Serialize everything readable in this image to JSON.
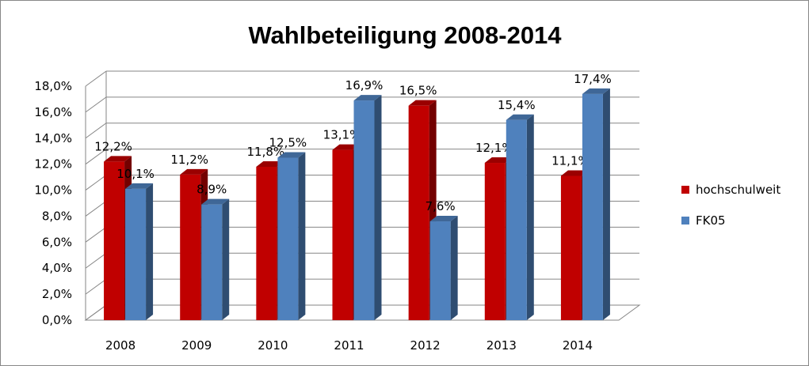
{
  "chart_data": {
    "type": "bar",
    "title": "Wahlbeteiligung 2008-2014",
    "xlabel": "",
    "ylabel": "",
    "categories": [
      "2008",
      "2009",
      "2010",
      "2011",
      "2012",
      "2013",
      "2014"
    ],
    "series": [
      {
        "name": "hochschulweit",
        "color": "#C00000",
        "values": [
          12.2,
          11.2,
          11.8,
          13.1,
          16.5,
          12.1,
          11.1
        ],
        "labels": [
          "12,2%",
          "11,2%",
          "11,8%",
          "13,1%",
          "16,5%",
          "12,1%",
          "11,1%"
        ]
      },
      {
        "name": "FK05",
        "color": "#4F81BD",
        "values": [
          10.1,
          8.9,
          12.5,
          16.9,
          7.6,
          15.4,
          17.4
        ],
        "labels": [
          "10,1%",
          "8,9%",
          "12,5%",
          "16,9%",
          "7,6%",
          "15,4%",
          "17,4%"
        ]
      }
    ],
    "ylim": [
      0,
      18
    ],
    "yticks": [
      "0,0%",
      "2,0%",
      "4,0%",
      "6,0%",
      "8,0%",
      "10,0%",
      "12,0%",
      "14,0%",
      "16,0%",
      "18,0%"
    ],
    "grid": true,
    "legend": "right",
    "bar_style": "3d-column"
  }
}
